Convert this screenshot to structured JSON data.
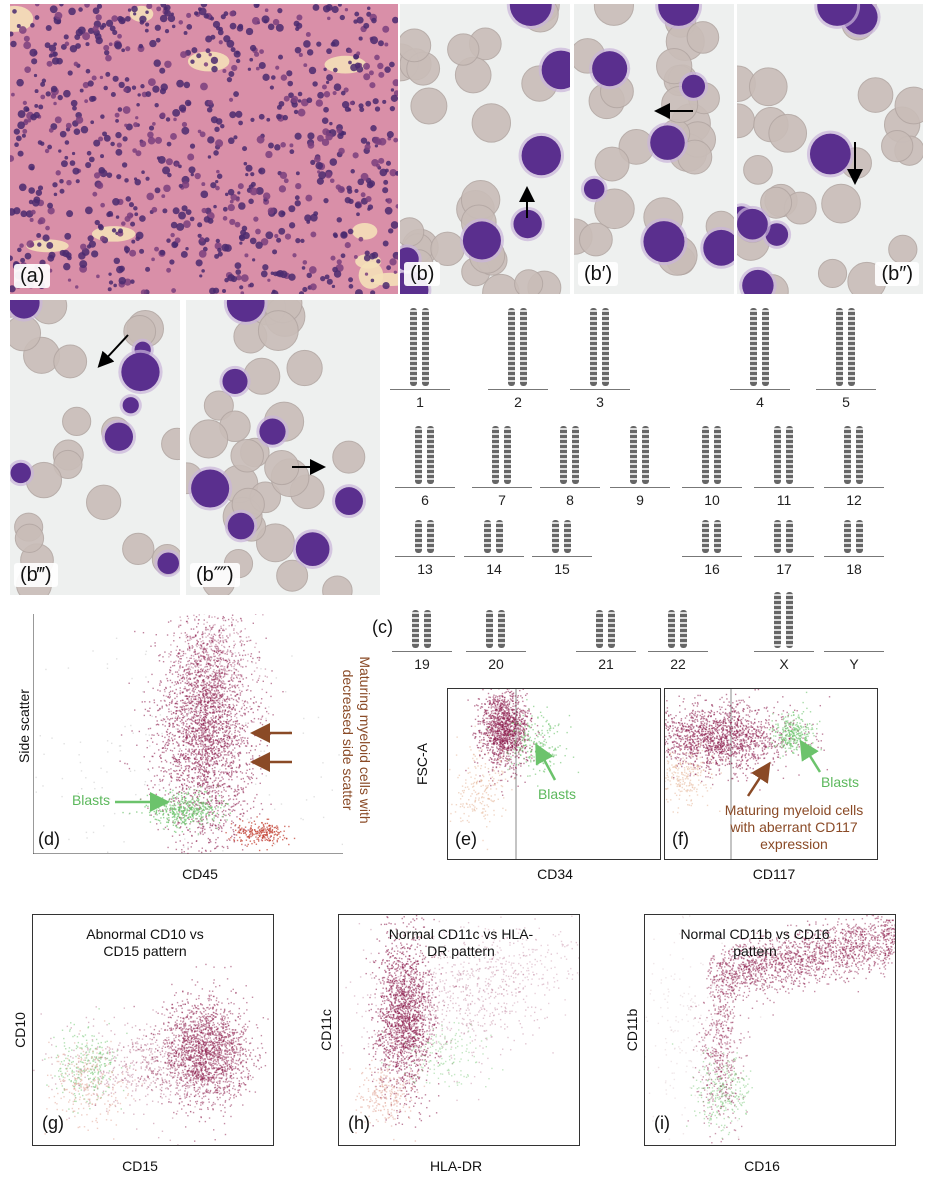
{
  "panel_labels": {
    "a": "(a)",
    "b": "(b)",
    "b1": "(b′)",
    "b2": "(b″)",
    "b3": "(b‴)",
    "b4": "(b⁗)",
    "c": "(c)",
    "d": "(d)",
    "e": "(e)",
    "f": "(f)",
    "g": "(g)",
    "h": "(h)",
    "i": "(i)"
  },
  "karyotype": {
    "chromosomes": [
      "1",
      "2",
      "3",
      "4",
      "5",
      "6",
      "7",
      "8",
      "9",
      "10",
      "11",
      "12",
      "13",
      "14",
      "15",
      "16",
      "17",
      "18",
      "19",
      "20",
      "21",
      "22",
      "X",
      "Y"
    ]
  },
  "flow": {
    "d": {
      "ylabel": "Side scatter",
      "xlabel": "CD45",
      "blasts_label": "Blasts",
      "maturing_label": "Maturing myeloid cells with decreased side scatter"
    },
    "e": {
      "ylabel": "FSC-A",
      "xlabel": "CD34",
      "blasts_label": "Blasts"
    },
    "f": {
      "xlabel": "CD117",
      "blasts_label": "Blasts",
      "maturing_label": "Maturing myeloid cells with aberrant CD117 expression"
    },
    "g": {
      "title": "Abnormal CD10 vs CD15 pattern",
      "ylabel": "CD10",
      "xlabel": "CD15"
    },
    "h": {
      "title": "Normal CD11c vs HLA-DR pattern",
      "ylabel": "CD11c",
      "xlabel": "HLA-DR"
    },
    "i": {
      "title": "Normal CD11b vs CD16 pattern",
      "ylabel": "CD11b",
      "xlabel": "CD16"
    }
  },
  "colors": {
    "main_population": "#8b1a4a",
    "blasts": "#6cc36c",
    "lymph": "#c0392b",
    "brown_annotation": "#8a4a26",
    "tissue_pink": "#d98fa8",
    "cell_purple": "#5a2f8e"
  }
}
